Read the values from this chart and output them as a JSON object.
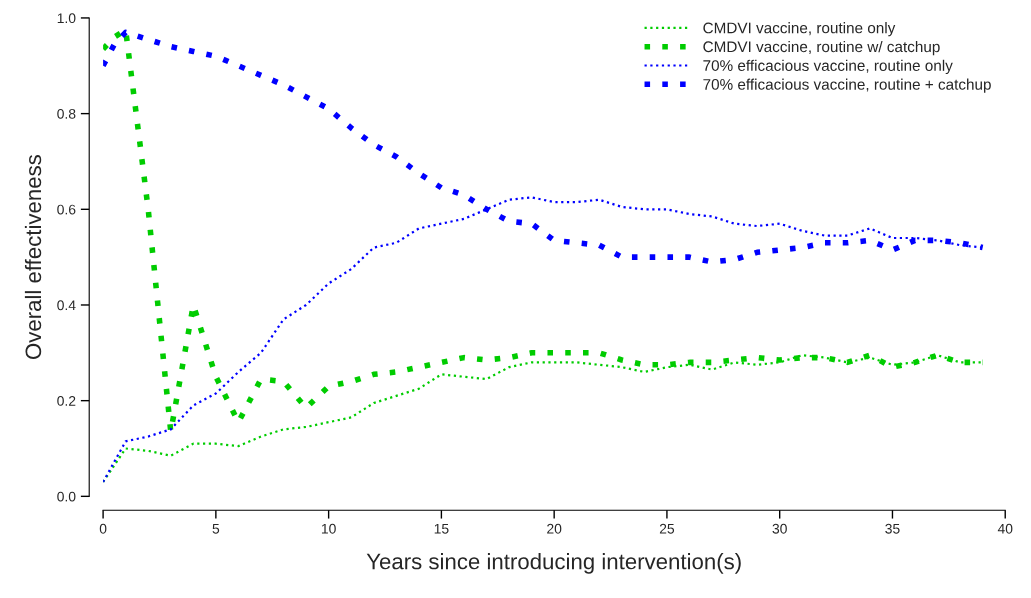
{
  "chart_data": {
    "type": "line",
    "xlabel": "Years since introducing intervention(s)",
    "ylabel": "Overall effectiveness",
    "xlim": [
      0,
      40
    ],
    "ylim": [
      0,
      1.0
    ],
    "xticks": [
      0,
      5,
      10,
      15,
      20,
      25,
      30,
      35,
      40
    ],
    "yticks": [
      {
        "value": 0,
        "label": "0.0"
      },
      0.2,
      0.4,
      0.6,
      0.8,
      {
        "value": 1,
        "label": "1.0"
      }
    ],
    "grid": false,
    "legend": "top right",
    "line_style": "dotted",
    "marker": "none",
    "series": [
      {
        "name": "CMDVI vaccine, routine only",
        "color": "#00cc00",
        "x": [
          0,
          1,
          2,
          3,
          4,
          5,
          6,
          7,
          8,
          9,
          10,
          11,
          12,
          13,
          14,
          15,
          16,
          17,
          18,
          19,
          20,
          21,
          22,
          23,
          24,
          25,
          26,
          27,
          28,
          29,
          30,
          31,
          32,
          33,
          34,
          35,
          36,
          37,
          38,
          39
        ],
        "values": [
          0.03,
          0.1,
          0.095,
          0.085,
          0.11,
          0.11,
          0.105,
          0.125,
          0.14,
          0.145,
          0.155,
          0.165,
          0.195,
          0.21,
          0.225,
          0.255,
          0.25,
          0.245,
          0.27,
          0.28,
          0.28,
          0.28,
          0.275,
          0.27,
          0.26,
          0.27,
          0.275,
          0.265,
          0.28,
          0.275,
          0.28,
          0.295,
          0.29,
          0.28,
          0.29,
          0.275,
          0.28,
          0.295,
          0.28,
          0.28
        ]
      },
      {
        "name": "CMDVI vaccine, routine w/ catchup",
        "color": "#00cc00",
        "line_style": "dashed",
        "x": [
          0,
          0.5,
          1,
          2,
          3,
          4,
          5,
          6,
          7,
          8,
          9,
          10,
          11,
          12,
          13,
          14,
          15,
          16,
          17,
          18,
          19,
          20,
          21,
          22,
          23,
          24,
          25,
          26,
          27,
          28,
          29,
          30,
          31,
          32,
          33,
          34,
          35,
          36,
          37,
          38,
          39
        ],
        "values": [
          0.935,
          0.96,
          0.975,
          0.6,
          0.135,
          0.4,
          0.25,
          0.155,
          0.245,
          0.24,
          0.185,
          0.23,
          0.24,
          0.255,
          0.26,
          0.27,
          0.28,
          0.29,
          0.285,
          0.29,
          0.3,
          0.3,
          0.3,
          0.3,
          0.285,
          0.275,
          0.275,
          0.28,
          0.28,
          0.285,
          0.29,
          0.285,
          0.29,
          0.29,
          0.28,
          0.295,
          0.27,
          0.28,
          0.295,
          0.28,
          0.28
        ]
      },
      {
        "name": "70% efficacious vaccine, routine only",
        "color": "#0000ff",
        "x": [
          0,
          1,
          2,
          3,
          4,
          5,
          6,
          7,
          8,
          9,
          10,
          11,
          12,
          13,
          14,
          15,
          16,
          17,
          18,
          19,
          20,
          21,
          22,
          23,
          24,
          25,
          26,
          27,
          28,
          29,
          30,
          31,
          32,
          33,
          34,
          35,
          36,
          37,
          38,
          39
        ],
        "values": [
          0.03,
          0.115,
          0.125,
          0.14,
          0.19,
          0.215,
          0.26,
          0.3,
          0.37,
          0.4,
          0.445,
          0.475,
          0.52,
          0.53,
          0.56,
          0.57,
          0.58,
          0.6,
          0.62,
          0.625,
          0.615,
          0.615,
          0.62,
          0.605,
          0.6,
          0.6,
          0.59,
          0.585,
          0.57,
          0.565,
          0.57,
          0.555,
          0.545,
          0.545,
          0.56,
          0.54,
          0.54,
          0.535,
          0.525,
          0.52
        ]
      },
      {
        "name": "70% efficacious vaccine, routine + catchup",
        "color": "#0000ff",
        "line_style": "dashed",
        "x": [
          0,
          0.5,
          1,
          2,
          3,
          4,
          5,
          6,
          7,
          8,
          9,
          10,
          11,
          12,
          13,
          14,
          15,
          16,
          17,
          18,
          19,
          20,
          21,
          22,
          23,
          24,
          25,
          26,
          27,
          28,
          29,
          30,
          31,
          32,
          33,
          34,
          35,
          36,
          37,
          38,
          39
        ],
        "values": [
          0.9,
          0.945,
          0.97,
          0.955,
          0.94,
          0.93,
          0.92,
          0.9,
          0.88,
          0.86,
          0.835,
          0.81,
          0.77,
          0.735,
          0.71,
          0.675,
          0.645,
          0.63,
          0.6,
          0.575,
          0.57,
          0.535,
          0.53,
          0.525,
          0.5,
          0.5,
          0.5,
          0.5,
          0.49,
          0.495,
          0.51,
          0.515,
          0.52,
          0.53,
          0.53,
          0.535,
          0.515,
          0.535,
          0.535,
          0.53,
          0.52
        ]
      }
    ]
  }
}
